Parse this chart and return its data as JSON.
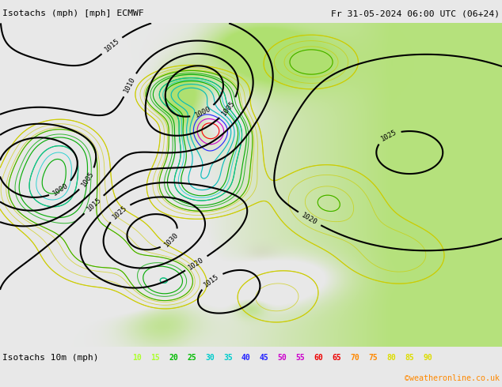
{
  "title_left": "Isotachs (mph) [mph] ECMWF",
  "title_right": "Fr 31-05-2024 06:00 UTC (06+24)",
  "legend_label": "Isotachs 10m (mph)",
  "legend_values": [
    "10",
    "15",
    "20",
    "25",
    "30",
    "35",
    "40",
    "45",
    "50",
    "55",
    "60",
    "65",
    "70",
    "75",
    "80",
    "85",
    "90"
  ],
  "legend_colors": [
    "#adff2f",
    "#adff2f",
    "#00bb00",
    "#00bb00",
    "#00cccc",
    "#00cccc",
    "#2222ff",
    "#2222ff",
    "#cc00cc",
    "#cc00cc",
    "#ee0000",
    "#ee0000",
    "#ff8800",
    "#ff8800",
    "#dddd00",
    "#dddd00",
    "#dddd00"
  ],
  "copyright": "©weatheronline.co.uk",
  "copyright_color": "#ff8800",
  "land_color": "#b0e070",
  "ocean_color": "#e8e8e8",
  "mountain_color": "#b0a888",
  "header_bg": "#e8e8e8",
  "footer_bg": "#e8e8e8",
  "fig_width": 6.34,
  "fig_height": 4.9,
  "dpi": 100,
  "isobar_levels": [
    1000,
    1005,
    1010,
    1015,
    1020,
    1025,
    1030
  ],
  "isobar_color": "black",
  "isobar_lw": 1.5,
  "isotach_levels": [
    10,
    15,
    20,
    25,
    30,
    35,
    40,
    45,
    50,
    55,
    60
  ],
  "isotach_colors": [
    "#cccc00",
    "#cccc00",
    "#00aa00",
    "#00aa00",
    "#00aa00",
    "#00bbbb",
    "#00bbbb",
    "#2222ff",
    "#cc00cc",
    "#ff0000",
    "#ff7700"
  ]
}
